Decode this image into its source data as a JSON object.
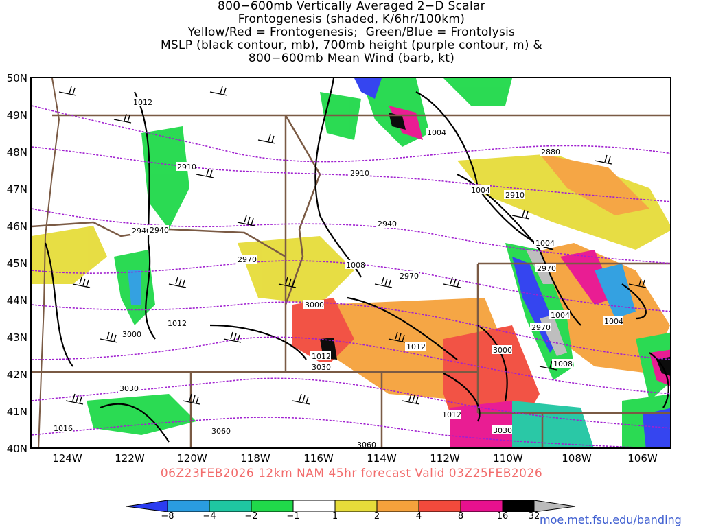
{
  "title": {
    "lines": [
      "800−600mb Vertically Averaged 2−D Scalar",
      "Frontogenesis (shaded, K/6hr/100km)",
      "Yellow/Red = Frontogenesis;  Green/Blue = Frontolysis",
      "MSLP (black contour, mb), 700mb height (purple contour, m) &",
      "800−600mb Mean Wind (barb, kt)"
    ]
  },
  "lat_labels": [
    "50N",
    "49N",
    "48N",
    "47N",
    "46N",
    "45N",
    "44N",
    "43N",
    "42N",
    "41N",
    "40N"
  ],
  "lon_labels": [
    "124W",
    "122W",
    "120W",
    "118W",
    "116W",
    "114W",
    "112W",
    "110W",
    "108W",
    "106W"
  ],
  "valid_line": "06Z23FEB2026 12km NAM 45hr forecast Valid 03Z25FEB2026",
  "credit": "moe.met.fsu.edu/banding",
  "colorbar": {
    "labels": [
      "−8",
      "−4",
      "−2",
      "−1",
      "1",
      "2",
      "4",
      "8",
      "16",
      "32"
    ],
    "colors": [
      "#2b3cf0",
      "#2a9ce0",
      "#1fc6a2",
      "#20d94a",
      "#ffffff",
      "#e6dc3a",
      "#f5a23c",
      "#f24a3c",
      "#e8118e",
      "#000000",
      "#bbbbbb"
    ]
  },
  "map_labels": {
    "mslp": [
      "1012",
      "1012",
      "1008",
      "1004",
      "1004",
      "1004",
      "1004",
      "1004",
      "1012",
      "1012",
      "1012",
      "1008",
      "1016"
    ],
    "height": [
      "2910",
      "2910",
      "2880",
      "2910",
      "2940",
      "2940",
      "2970",
      "2970",
      "2970",
      "3000",
      "3000",
      "3000",
      "3030",
      "3030",
      "3030",
      "3060",
      "3060",
      "2970",
      "2940"
    ]
  },
  "colors": {
    "mslp_contour": "#000000",
    "height_contour": "#a020d0",
    "border": "#7a5a44",
    "accent_title": "#f26d6d"
  }
}
